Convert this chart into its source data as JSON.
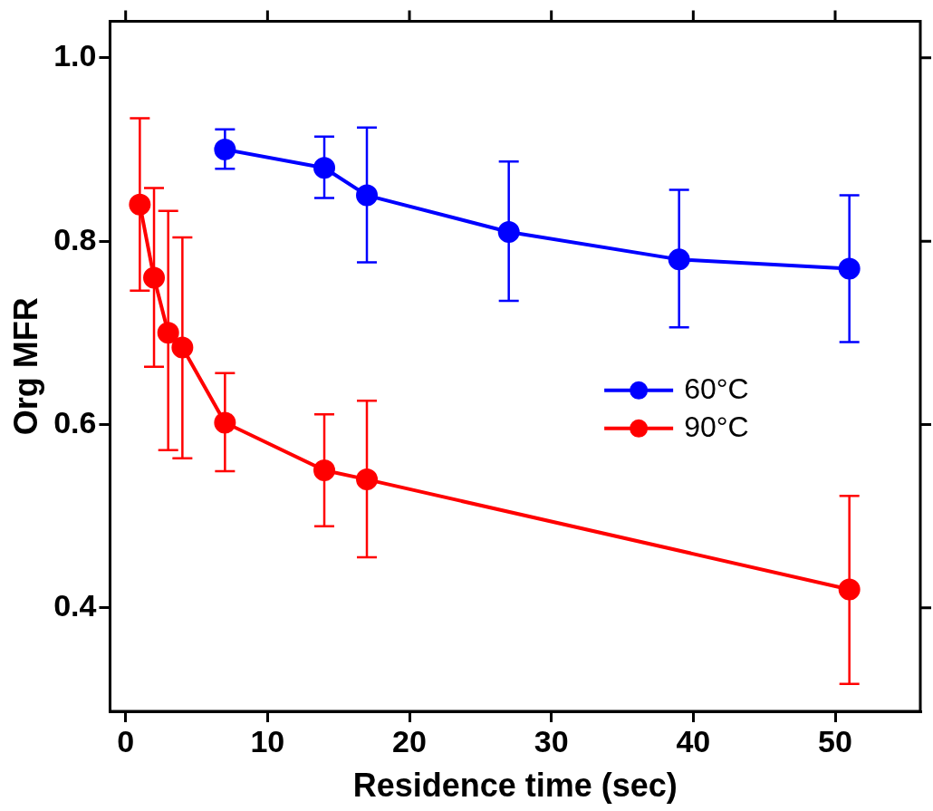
{
  "chart_data": {
    "type": "line",
    "xlabel": "Residence time (sec)",
    "ylabel": "Org MFR",
    "series": [
      {
        "name": "60°C",
        "color": "#0000ff",
        "x": [
          7,
          14,
          17,
          27,
          39,
          51
        ],
        "values": [
          0.9,
          0.88,
          0.85,
          0.81,
          0.78,
          0.77
        ],
        "errors": [
          [
            0.879,
            0.922
          ],
          [
            0.847,
            0.914
          ],
          [
            0.777,
            0.924
          ],
          [
            0.735,
            0.887
          ],
          [
            0.706,
            0.856
          ],
          [
            0.69,
            0.85
          ]
        ]
      },
      {
        "name": "90°C",
        "color": "#ff0000",
        "x": [
          1,
          2,
          3,
          4,
          7,
          14,
          17,
          51
        ],
        "values": [
          0.84,
          0.76,
          0.7,
          0.684,
          0.602,
          0.55,
          0.54,
          0.42
        ],
        "errors": [
          [
            0.746,
            0.934
          ],
          [
            0.663,
            0.858
          ],
          [
            0.572,
            0.833
          ],
          [
            0.563,
            0.804
          ],
          [
            0.549,
            0.656
          ],
          [
            0.489,
            0.611
          ],
          [
            0.455,
            0.626
          ],
          [
            0.317,
            0.522
          ]
        ]
      }
    ],
    "xlim": [
      -1.1,
      56
    ],
    "xticks": [
      0,
      10,
      20,
      30,
      40,
      50
    ],
    "ylim": [
      0.287,
      1.04
    ],
    "yticks": [
      {
        "value": 0.4,
        "label": "0.4"
      },
      {
        "value": 0.6,
        "label": "0.6"
      },
      {
        "value": 0.8,
        "label": "0.8"
      },
      {
        "value": 1.0,
        "label": "1.0"
      }
    ],
    "grid": false,
    "legend": "right",
    "marker": "circle",
    "line_style": "solid"
  }
}
